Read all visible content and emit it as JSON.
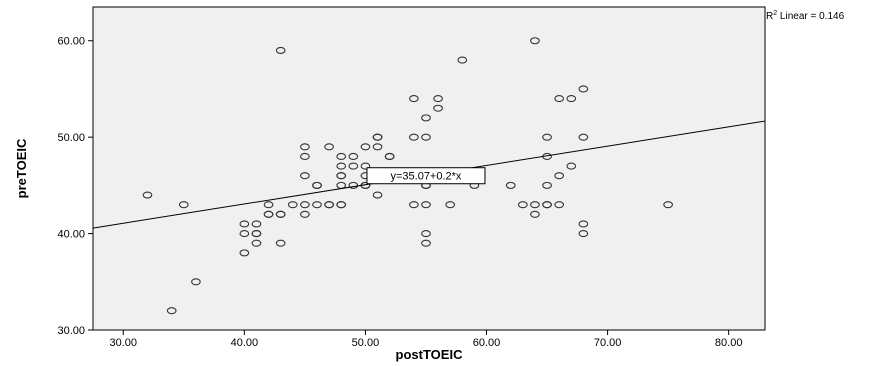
{
  "chart_data": {
    "type": "scatter",
    "xlabel": "postTOEIC",
    "ylabel": "preTOEIC",
    "xlim": [
      27.5,
      83
    ],
    "ylim": [
      30,
      63.5
    ],
    "xticks": [
      "30.00",
      "40.00",
      "50.00",
      "60.00",
      "70.00",
      "80.00"
    ],
    "xtick_values": [
      30,
      40,
      50,
      60,
      70,
      80
    ],
    "yticks": [
      "30.00",
      "40.00",
      "50.00",
      "60.00"
    ],
    "ytick_values": [
      30,
      40,
      50,
      60
    ],
    "grid": false,
    "plot_background": "#f0f0f0",
    "marker_color": "#333333",
    "fit_line": {
      "intercept": 35.07,
      "slope": 0.2,
      "label": "y=35.07+0.2*x",
      "label_x": 55,
      "label_y": 46
    },
    "r2_label": {
      "prefix": "R",
      "sup": "2",
      "text": " Linear = 0.146"
    },
    "points": [
      [
        32,
        44
      ],
      [
        34,
        32
      ],
      [
        35,
        43
      ],
      [
        36,
        35
      ],
      [
        40,
        41
      ],
      [
        40,
        40
      ],
      [
        40,
        38
      ],
      [
        41,
        41
      ],
      [
        41,
        40
      ],
      [
        41,
        40
      ],
      [
        41,
        39
      ],
      [
        42,
        43
      ],
      [
        42,
        42
      ],
      [
        42,
        42
      ],
      [
        43,
        42
      ],
      [
        43,
        42
      ],
      [
        43,
        39
      ],
      [
        43,
        59
      ],
      [
        44,
        43
      ],
      [
        45,
        49
      ],
      [
        45,
        48
      ],
      [
        45,
        46
      ],
      [
        45,
        43
      ],
      [
        45,
        42
      ],
      [
        46,
        45
      ],
      [
        46,
        45
      ],
      [
        46,
        43
      ],
      [
        47,
        49
      ],
      [
        47,
        43
      ],
      [
        47,
        43
      ],
      [
        48,
        48
      ],
      [
        48,
        47
      ],
      [
        48,
        46
      ],
      [
        48,
        46
      ],
      [
        48,
        45
      ],
      [
        48,
        43
      ],
      [
        48,
        43
      ],
      [
        49,
        48
      ],
      [
        49,
        47
      ],
      [
        49,
        45
      ],
      [
        50,
        49
      ],
      [
        50,
        47
      ],
      [
        50,
        46
      ],
      [
        50,
        45
      ],
      [
        50,
        45
      ],
      [
        51,
        50
      ],
      [
        51,
        50
      ],
      [
        51,
        49
      ],
      [
        51,
        44
      ],
      [
        52,
        48
      ],
      [
        52,
        48
      ],
      [
        54,
        54
      ],
      [
        54,
        50
      ],
      [
        54,
        43
      ],
      [
        55,
        52
      ],
      [
        55,
        50
      ],
      [
        55,
        45
      ],
      [
        55,
        45
      ],
      [
        55,
        43
      ],
      [
        55,
        40
      ],
      [
        55,
        39
      ],
      [
        56,
        54
      ],
      [
        56,
        53
      ],
      [
        57,
        43
      ],
      [
        58,
        58
      ],
      [
        59,
        45
      ],
      [
        62,
        45
      ],
      [
        63,
        43
      ],
      [
        64,
        60
      ],
      [
        64,
        43
      ],
      [
        64,
        42
      ],
      [
        65,
        50
      ],
      [
        65,
        48
      ],
      [
        65,
        45
      ],
      [
        65,
        43
      ],
      [
        65,
        43
      ],
      [
        66,
        54
      ],
      [
        66,
        46
      ],
      [
        66,
        43
      ],
      [
        67,
        54
      ],
      [
        67,
        47
      ],
      [
        68,
        55
      ],
      [
        68,
        50
      ],
      [
        68,
        41
      ],
      [
        68,
        40
      ],
      [
        75,
        43
      ]
    ]
  }
}
